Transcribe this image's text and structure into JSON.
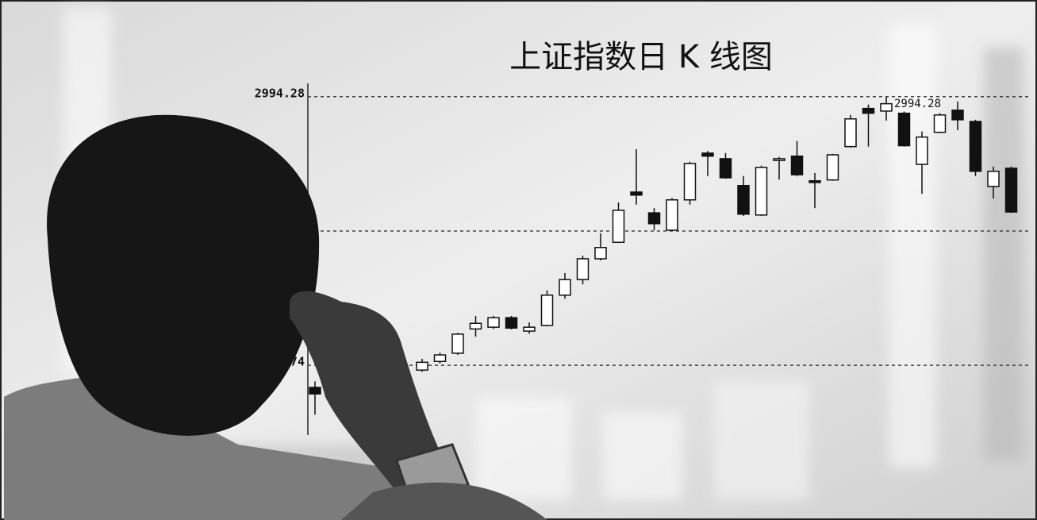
{
  "chart_data": {
    "type": "candlestick",
    "title": "上证指数日 K 线图",
    "categories": [
      null,
      null,
      null,
      null,
      null,
      null,
      null,
      null,
      null,
      null,
      null,
      null,
      null,
      null,
      null,
      null,
      null,
      null,
      null,
      null,
      null,
      null,
      null,
      null,
      null,
      null,
      null,
      null,
      null,
      null,
      null,
      null,
      null,
      null,
      null,
      null,
      null,
      null,
      null,
      null
    ],
    "open": [
      2323,
      null,
      null,
      null,
      null,
      null,
      2363,
      2383,
      2402,
      2458,
      2462,
      2484,
      2453,
      2466,
      2536,
      2572,
      2620,
      2658,
      2774,
      2726,
      2686,
      2756,
      2864,
      2851,
      2789,
      2721,
      2847,
      2857,
      2800,
      2802,
      2879,
      2967,
      2961,
      2956,
      2838,
      2912,
      2963,
      2937,
      2787,
      2829
    ],
    "high": [
      2337,
      null,
      null,
      null,
      null,
      null,
      2389,
      2403,
      2449,
      2488,
      2488,
      2488,
      2473,
      2547,
      2587,
      2627,
      2679,
      2750,
      2873,
      2737,
      2760,
      2844,
      2869,
      2864,
      2811,
      2835,
      2855,
      2892,
      2818,
      2862,
      2952,
      2976,
      2994.28,
      2960,
      2914,
      2956,
      2983,
      2941,
      2833,
      2833
    ],
    "low": [
      2260,
      null,
      null,
      null,
      null,
      null,
      2359,
      2378,
      2398,
      2440,
      2458,
      2457,
      2447,
      2464,
      2528,
      2561,
      2616,
      2657,
      2745,
      2686,
      2684,
      2745,
      2811,
      2805,
      2719,
      2719,
      2803,
      2811,
      2737,
      2800,
      2877,
      2879,
      2939,
      2879,
      2770,
      2910,
      2917,
      2811,
      2759,
      2726
    ],
    "close": [
      2308,
      null,
      null,
      null,
      null,
      null,
      2381,
      2398,
      2446,
      2471,
      2484,
      2460,
      2462,
      2536,
      2572,
      2620,
      2646,
      2732,
      2767,
      2701,
      2756,
      2840,
      2857,
      2807,
      2723,
      2831,
      2851,
      2814,
      2796,
      2860,
      2943,
      2956,
      2978,
      2881,
      2901,
      2952,
      2941,
      2822,
      2822,
      2728
    ],
    "annotation": "2994.28",
    "ylim": [
      2213,
      3025
    ],
    "yticks": [
      {
        "value": 2994.28,
        "label": "2994.28"
      },
      {
        "value": 2374,
        "label": "2374"
      }
    ],
    "grid": true,
    "up_color": "#ffffff",
    "down_color": "#111111"
  }
}
